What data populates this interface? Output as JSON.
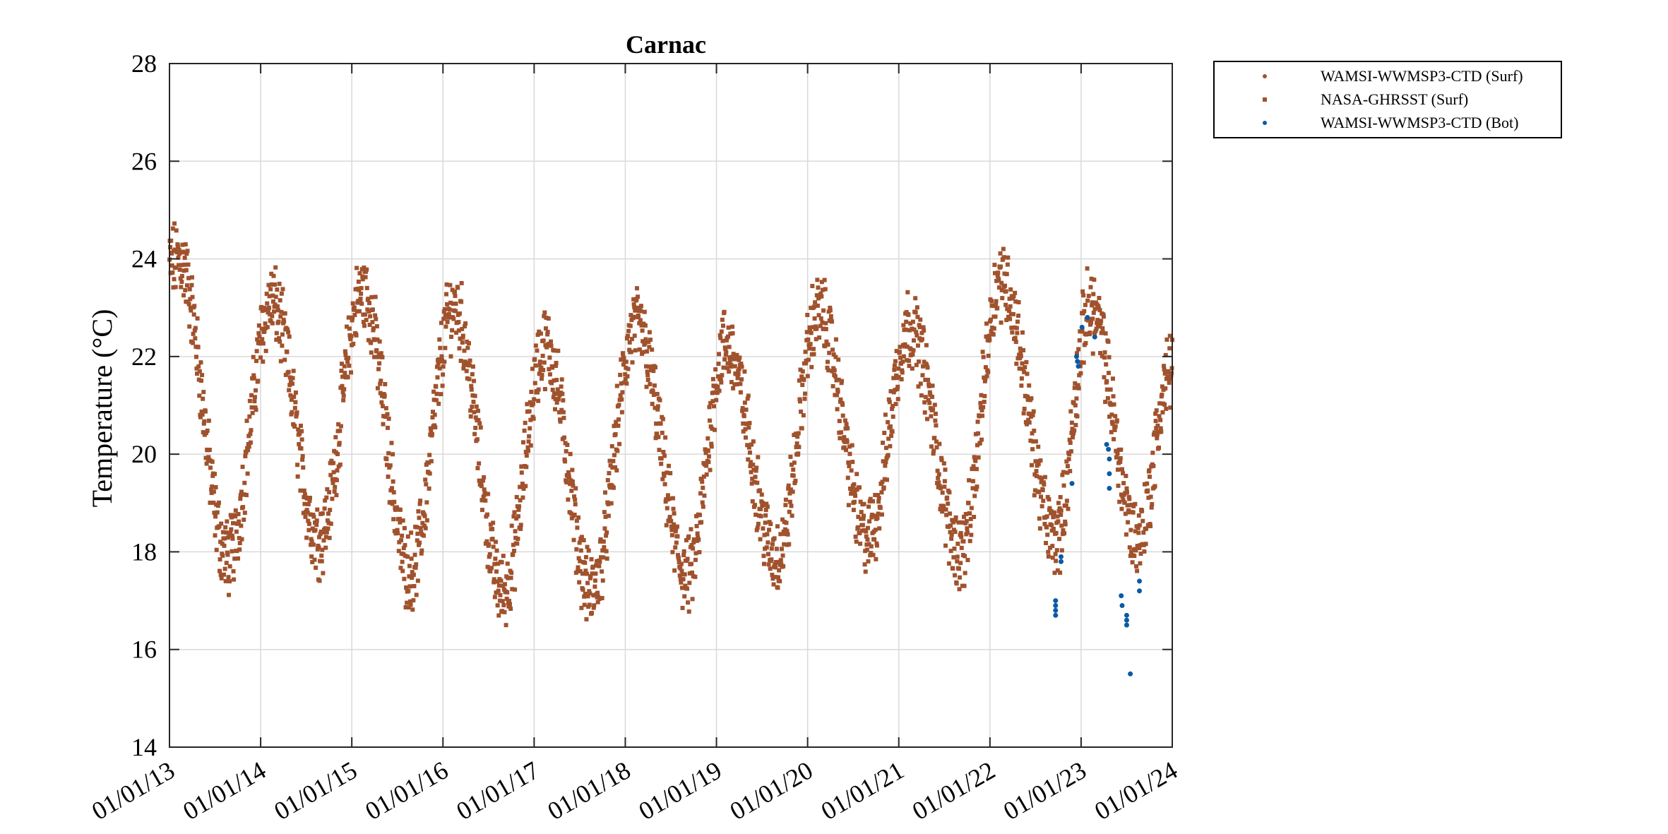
{
  "chart_data": {
    "type": "scatter",
    "title": "Carnac",
    "xlabel": "",
    "ylabel": "Temperature (°C)",
    "xlim": [
      "01/01/13",
      "01/01/24"
    ],
    "ylim": [
      14,
      28
    ],
    "yticks": [
      14,
      16,
      18,
      20,
      22,
      24,
      26,
      28
    ],
    "xticks": [
      "01/01/13",
      "01/01/14",
      "01/01/15",
      "01/01/16",
      "01/01/17",
      "01/01/18",
      "01/01/19",
      "01/01/20",
      "01/01/21",
      "01/01/22",
      "01/01/23",
      "01/01/24"
    ],
    "grid": true,
    "legend_position": "outside-top-right",
    "series": [
      {
        "name": "WAMSI-WWMSP3-CTD (Surf)",
        "marker": "dot",
        "color": "#a0522d",
        "points": []
      },
      {
        "name": "NASA-GHRSST (Surf)",
        "marker": "square",
        "color": "#a0522d",
        "peaks": [
          {
            "x": 2013.1,
            "y": 24.0
          },
          {
            "x": 2014.12,
            "y": 23.1
          },
          {
            "x": 2015.12,
            "y": 23.3
          },
          {
            "x": 2016.12,
            "y": 23.0
          },
          {
            "x": 2017.12,
            "y": 22.2
          },
          {
            "x": 2018.12,
            "y": 22.6
          },
          {
            "x": 2019.1,
            "y": 22.2
          },
          {
            "x": 2020.12,
            "y": 22.9
          },
          {
            "x": 2021.12,
            "y": 22.6
          },
          {
            "x": 2022.12,
            "y": 23.6
          },
          {
            "x": 2023.1,
            "y": 23.0
          }
        ],
        "troughs": [
          {
            "x": 2013.64,
            "y": 17.9
          },
          {
            "x": 2014.64,
            "y": 18.3
          },
          {
            "x": 2015.64,
            "y": 17.6
          },
          {
            "x": 2016.66,
            "y": 17.2
          },
          {
            "x": 2017.63,
            "y": 17.2
          },
          {
            "x": 2018.68,
            "y": 17.5
          },
          {
            "x": 2019.66,
            "y": 17.9
          },
          {
            "x": 2020.66,
            "y": 18.3
          },
          {
            "x": 2021.68,
            "y": 18.0
          },
          {
            "x": 2022.72,
            "y": 18.3
          },
          {
            "x": 2023.62,
            "y": 18.3
          }
        ],
        "end_value": {
          "x": 2024.0,
          "y": 21.8
        }
      },
      {
        "name": "WAMSI-WWMSP3-CTD (Bot)",
        "marker": "dot",
        "color": "#0a5aa5",
        "points": [
          {
            "x": 2022.72,
            "y": 17.0
          },
          {
            "x": 2022.72,
            "y": 16.9
          },
          {
            "x": 2022.72,
            "y": 16.8
          },
          {
            "x": 2022.72,
            "y": 16.7
          },
          {
            "x": 2022.78,
            "y": 17.9
          },
          {
            "x": 2022.78,
            "y": 17.8
          },
          {
            "x": 2022.9,
            "y": 19.4
          },
          {
            "x": 2022.95,
            "y": 22.0
          },
          {
            "x": 2022.96,
            "y": 21.9
          },
          {
            "x": 2022.97,
            "y": 21.8
          },
          {
            "x": 2023.01,
            "y": 22.6
          },
          {
            "x": 2023.07,
            "y": 22.8
          },
          {
            "x": 2023.15,
            "y": 22.4
          },
          {
            "x": 2023.28,
            "y": 20.2
          },
          {
            "x": 2023.3,
            "y": 20.1
          },
          {
            "x": 2023.31,
            "y": 19.9
          },
          {
            "x": 2023.31,
            "y": 19.6
          },
          {
            "x": 2023.31,
            "y": 19.3
          },
          {
            "x": 2023.44,
            "y": 17.1
          },
          {
            "x": 2023.45,
            "y": 16.9
          },
          {
            "x": 2023.5,
            "y": 16.7
          },
          {
            "x": 2023.5,
            "y": 16.6
          },
          {
            "x": 2023.5,
            "y": 16.5
          },
          {
            "x": 2023.54,
            "y": 15.5
          },
          {
            "x": 2023.64,
            "y": 17.4
          },
          {
            "x": 2023.64,
            "y": 17.2
          }
        ]
      }
    ]
  },
  "colors": {
    "surf": "#a0522d",
    "bot": "#0a5aa5",
    "grid": "#d9d9d9",
    "axis": "#262626"
  }
}
